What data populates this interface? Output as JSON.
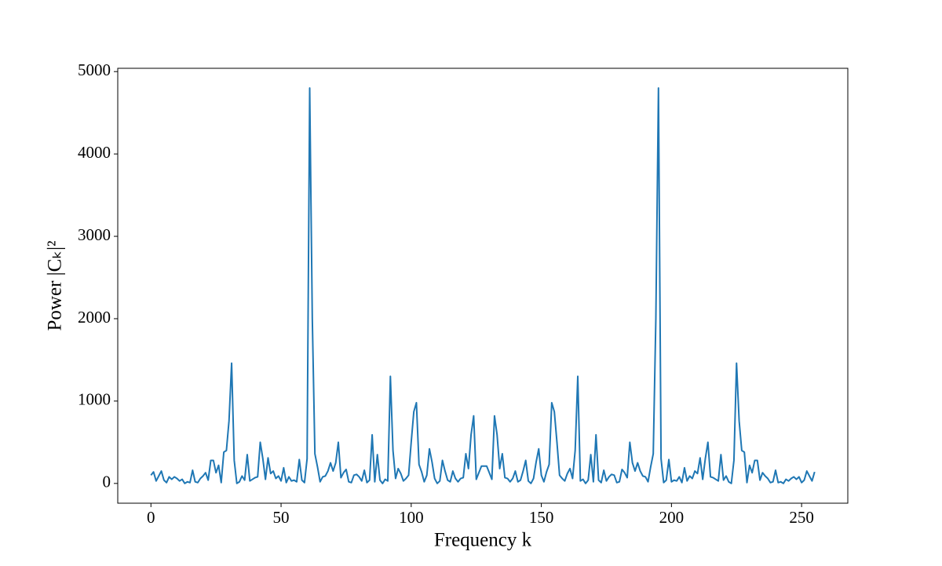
{
  "chart_data": {
    "type": "line",
    "xlabel": "Frequency k",
    "ylabel": "Power |Cₖ|²",
    "xlim": [
      -12.75,
      267.75
    ],
    "ylim": [
      -240,
      5040
    ],
    "xticks": [
      0,
      50,
      100,
      150,
      200,
      250
    ],
    "yticks": [
      0,
      1000,
      2000,
      3000,
      4000,
      5000
    ],
    "x": [
      0,
      1,
      2,
      3,
      4,
      5,
      6,
      7,
      8,
      9,
      10,
      11,
      12,
      13,
      14,
      15,
      16,
      17,
      18,
      19,
      20,
      21,
      22,
      23,
      24,
      25,
      26,
      27,
      28,
      29,
      30,
      31,
      32,
      33,
      34,
      35,
      36,
      37,
      38,
      39,
      40,
      41,
      42,
      43,
      44,
      45,
      46,
      47,
      48,
      49,
      50,
      51,
      52,
      53,
      54,
      55,
      56,
      57,
      58,
      59,
      60,
      61,
      62,
      63,
      64,
      65,
      66,
      67,
      68,
      69,
      70,
      71,
      72,
      73,
      74,
      75,
      76,
      77,
      78,
      79,
      80,
      81,
      82,
      83,
      84,
      85,
      86,
      87,
      88,
      89,
      90,
      91,
      92,
      93,
      94,
      95,
      96,
      97,
      98,
      99,
      100,
      101,
      102,
      103,
      104,
      105,
      106,
      107,
      108,
      109,
      110,
      111,
      112,
      113,
      114,
      115,
      116,
      117,
      118,
      119,
      120,
      121,
      122,
      123,
      124,
      125,
      126,
      127,
      128,
      129,
      130,
      131,
      132,
      133,
      134,
      135,
      136,
      137,
      138,
      139,
      140,
      141,
      142,
      143,
      144,
      145,
      146,
      147,
      148,
      149,
      150,
      151,
      152,
      153,
      154,
      155,
      156,
      157,
      158,
      159,
      160,
      161,
      162,
      163,
      164,
      165,
      166,
      167,
      168,
      169,
      170,
      171,
      172,
      173,
      174,
      175,
      176,
      177,
      178,
      179,
      180,
      181,
      182,
      183,
      184,
      185,
      186,
      187,
      188,
      189,
      190,
      191,
      192,
      193,
      194,
      195,
      196,
      197,
      198,
      199,
      200,
      201,
      202,
      203,
      204,
      205,
      206,
      207,
      208,
      209,
      210,
      211,
      212,
      213,
      214,
      215,
      216,
      217,
      218,
      219,
      220,
      221,
      222,
      223,
      224,
      225,
      226,
      227,
      228,
      229,
      230,
      231,
      232,
      233,
      234,
      235,
      236,
      237,
      238,
      239,
      240,
      241,
      242,
      243,
      244,
      245,
      246,
      247,
      248,
      249,
      250,
      251,
      252,
      253,
      254,
      255
    ],
    "series": [
      {
        "color": "#1f77b4",
        "values": [
          100,
          140,
          30,
          90,
          150,
          40,
          10,
          80,
          50,
          80,
          60,
          30,
          50,
          0,
          20,
          10,
          160,
          20,
          10,
          60,
          90,
          130,
          40,
          280,
          280,
          130,
          220,
          10,
          380,
          400,
          760,
          1460,
          280,
          0,
          20,
          90,
          40,
          350,
          30,
          50,
          70,
          80,
          500,
          300,
          50,
          310,
          120,
          150,
          60,
          90,
          30,
          190,
          10,
          80,
          30,
          40,
          20,
          290,
          40,
          10,
          300,
          4800,
          2000,
          360,
          200,
          20,
          80,
          90,
          150,
          250,
          150,
          250,
          500,
          70,
          130,
          170,
          20,
          10,
          100,
          110,
          80,
          30,
          160,
          10,
          40,
          590,
          20,
          350,
          40,
          0,
          50,
          30,
          1300,
          400,
          60,
          180,
          120,
          30,
          60,
          100,
          500,
          870,
          980,
          230,
          140,
          20,
          100,
          420,
          260,
          60,
          0,
          30,
          280,
          150,
          40,
          20,
          150,
          60,
          20,
          60,
          70,
          360,
          180,
          590,
          820,
          50,
          130,
          210,
          210,
          210,
          130,
          50,
          820,
          590,
          180,
          360,
          70,
          60,
          20,
          60,
          150,
          20,
          40,
          150,
          280,
          30,
          0,
          60,
          260,
          420,
          100,
          20,
          140,
          230,
          980,
          870,
          500,
          100,
          60,
          30,
          120,
          180,
          60,
          400,
          1300,
          30,
          50,
          0,
          40,
          350,
          20,
          590,
          40,
          10,
          160,
          30,
          80,
          110,
          100,
          10,
          20,
          170,
          130,
          70,
          500,
          250,
          150,
          250,
          150,
          90,
          80,
          20,
          200,
          360,
          2000,
          4800,
          300,
          10,
          40,
          290,
          20,
          40,
          30,
          80,
          10,
          190,
          30,
          90,
          60,
          150,
          120,
          310,
          50,
          300,
          500,
          80,
          70,
          50,
          30,
          350,
          40,
          90,
          20,
          0,
          280,
          1460,
          760,
          400,
          380,
          10,
          220,
          130,
          280,
          280,
          40,
          130,
          90,
          60,
          10,
          20,
          160,
          10,
          20,
          0,
          50,
          30,
          60,
          80,
          50,
          80,
          10,
          40,
          150,
          90,
          30,
          140
        ]
      }
    ]
  }
}
